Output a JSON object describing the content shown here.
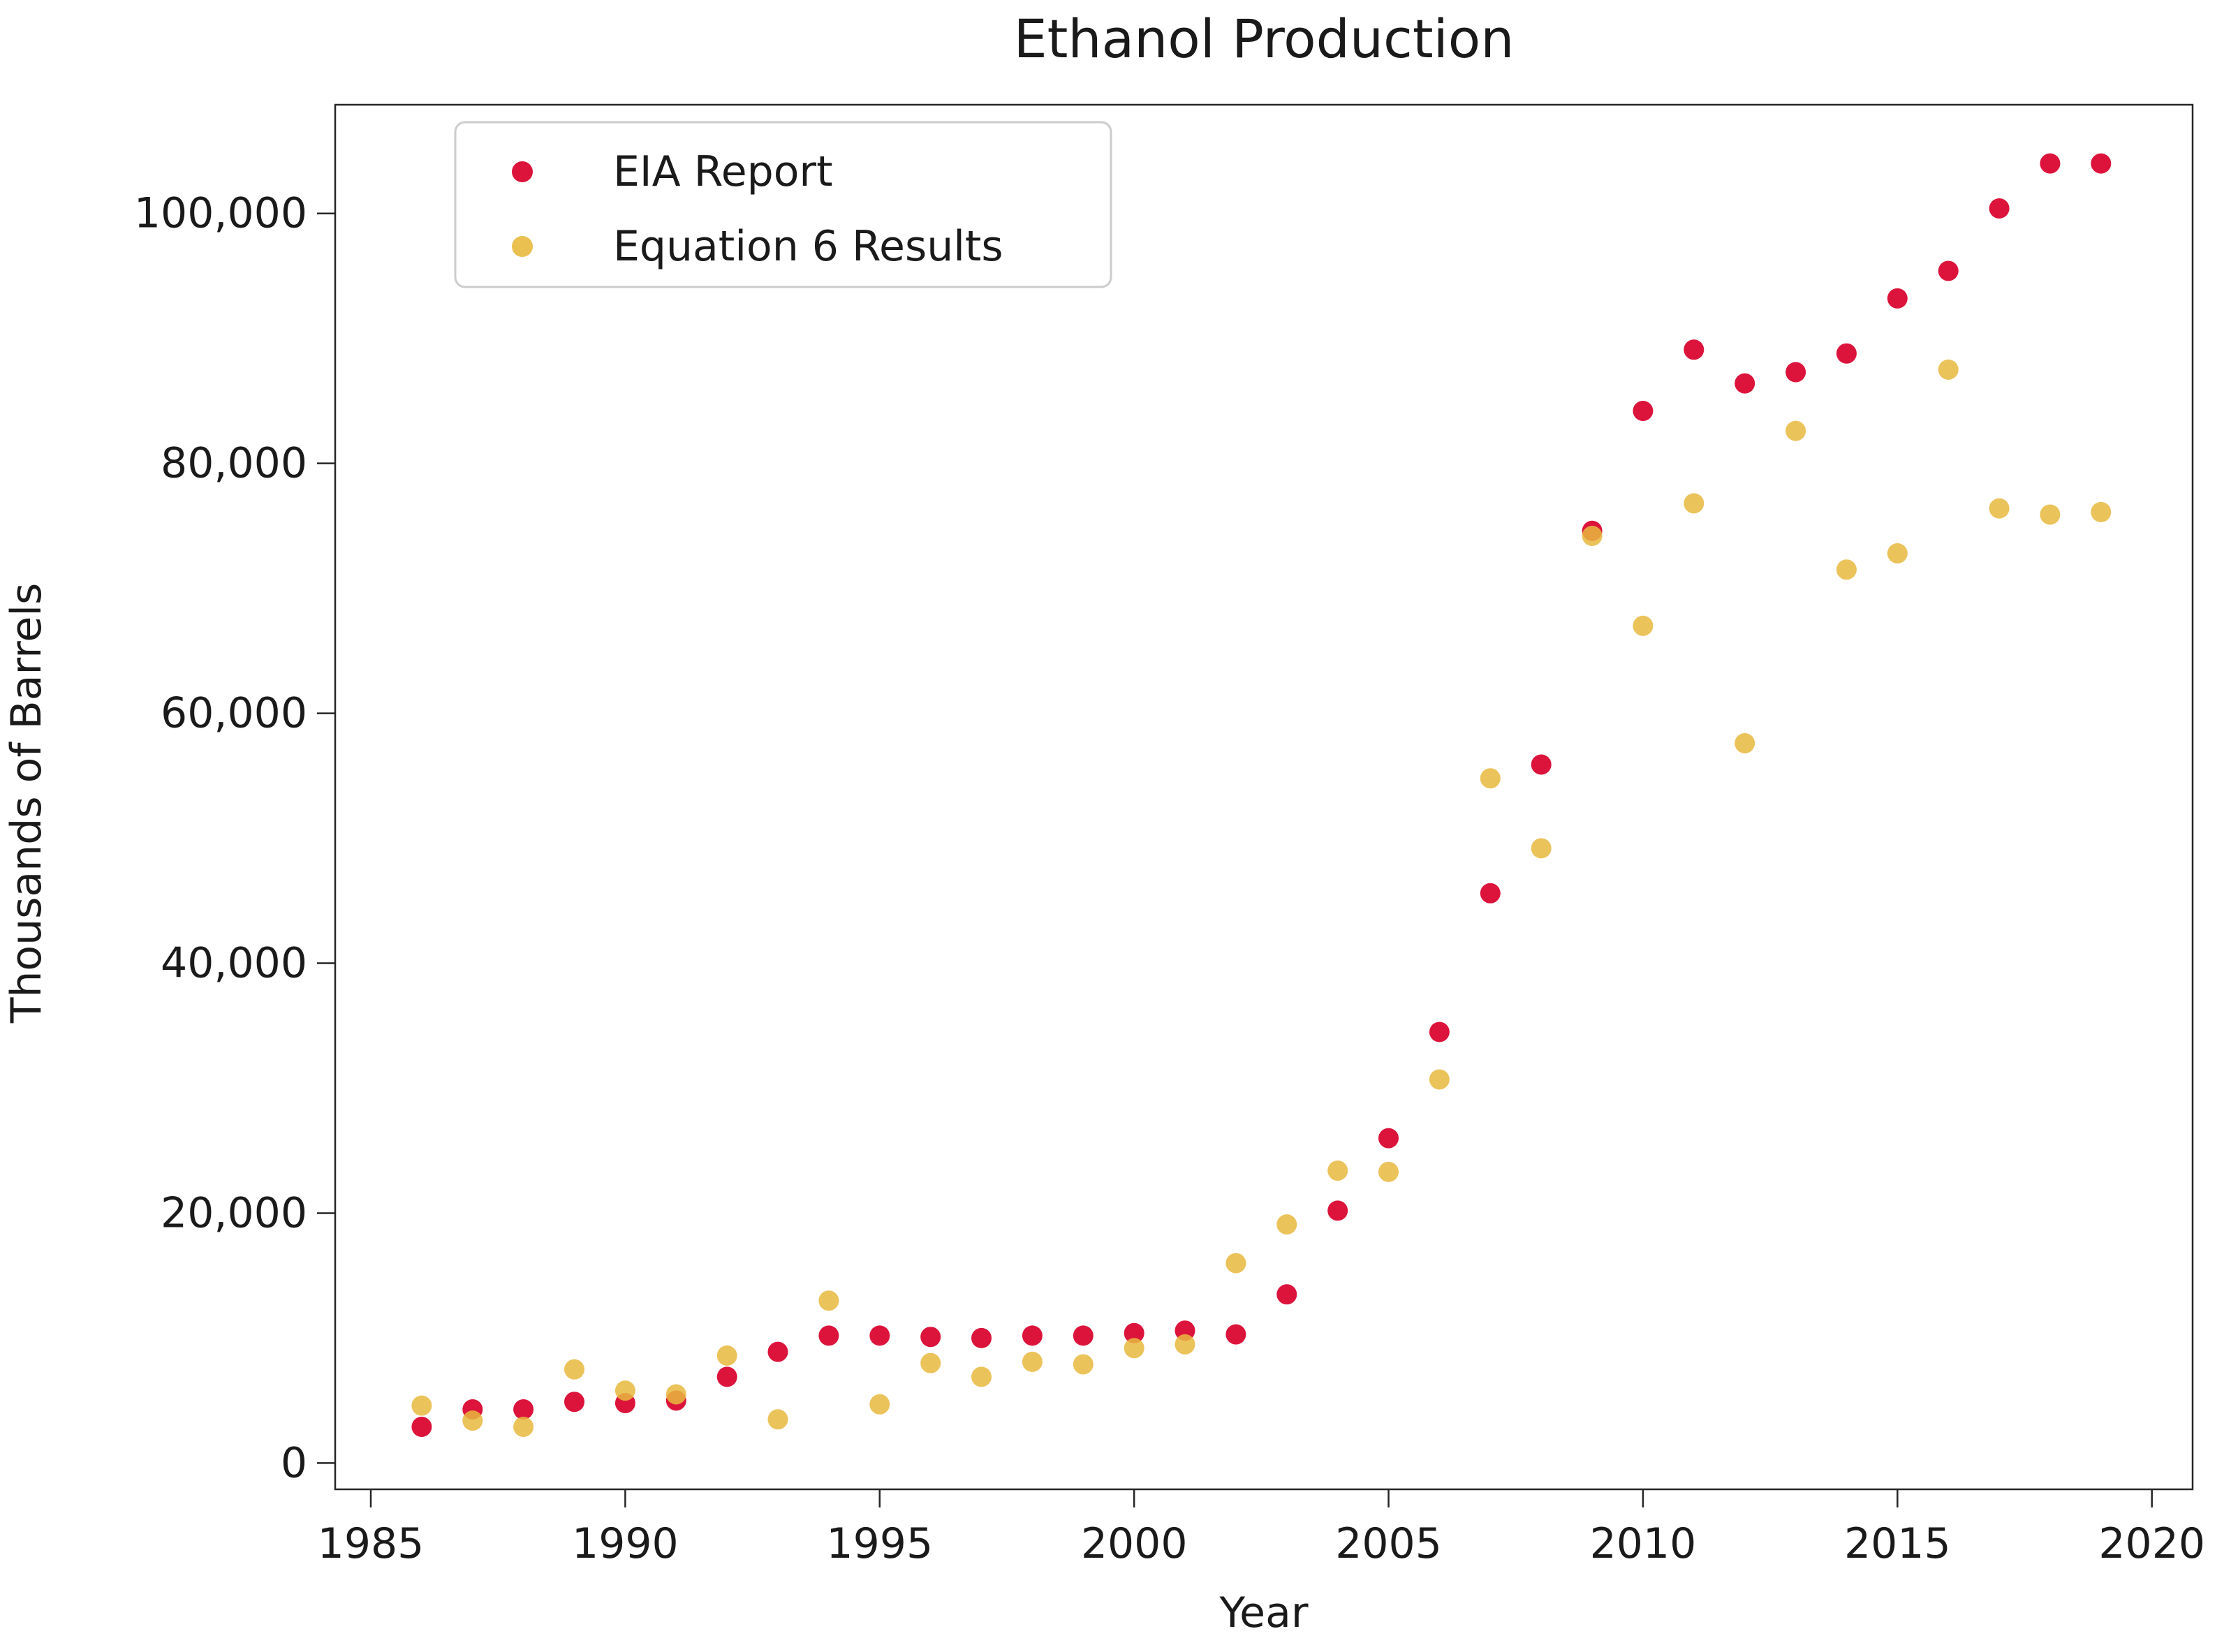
{
  "title": "Ethanol Production",
  "colors": {
    "eia_marker": "#DC143C",
    "eq6_marker": "#E8B93E",
    "spine": "#262626",
    "text": "#1a1a1a",
    "legend_border": "#cccccc",
    "background": "#ffffff"
  },
  "legend": {
    "items": [
      {
        "label": "EIA Report",
        "color": "#DC143C"
      },
      {
        "label": "Equation 6 Results",
        "color": "#E8B93E"
      }
    ]
  },
  "chart_data": {
    "type": "scatter",
    "title": "Ethanol Production",
    "xlabel": "Year",
    "ylabel": "Thousands of Barrels",
    "xlim": [
      1984.3,
      2020.8
    ],
    "ylim": [
      -2100,
      108700
    ],
    "x_ticks": [
      1985,
      1990,
      1995,
      2000,
      2005,
      2010,
      2015,
      2020
    ],
    "x_tick_labels": [
      "1985",
      "1990",
      "1995",
      "2000",
      "2005",
      "2010",
      "2015",
      "2020"
    ],
    "y_ticks": [
      0,
      20000,
      40000,
      60000,
      80000,
      100000
    ],
    "y_tick_labels": [
      "0",
      "20,000",
      "40,000",
      "60,000",
      "80,000",
      "100,000"
    ],
    "grid": false,
    "legend_position": "upper-left",
    "x": [
      1986,
      1987,
      1988,
      1989,
      1990,
      1991,
      1992,
      1993,
      1994,
      1995,
      1996,
      1997,
      1998,
      1999,
      2000,
      2001,
      2002,
      2003,
      2004,
      2005,
      2006,
      2007,
      2008,
      2009,
      2010,
      2011,
      2012,
      2013,
      2014,
      2015,
      2016,
      2017,
      2018,
      2019
    ],
    "series": [
      {
        "name": "EIA Report",
        "color": "#DC143C",
        "opacity": 1.0,
        "values": [
          2900,
          4300,
          4300,
          4900,
          4800,
          5000,
          6900,
          8900,
          10200,
          10200,
          10100,
          10000,
          10200,
          10200,
          10400,
          10600,
          10300,
          13500,
          20200,
          26000,
          34500,
          45600,
          55900,
          74600,
          84200,
          89100,
          86400,
          87300,
          88800,
          93200,
          95400,
          100400,
          104000,
          104000
        ]
      },
      {
        "name": "Equation 6 Results",
        "color": "#E8B93E",
        "opacity": 0.85,
        "values": [
          4600,
          3400,
          2900,
          7500,
          5800,
          5500,
          8600,
          3500,
          13000,
          4700,
          8000,
          6900,
          8100,
          7900,
          9200,
          9500,
          16000,
          19100,
          23400,
          23300,
          30700,
          54800,
          49200,
          74200,
          67000,
          76800,
          57600,
          82600,
          71500,
          72800,
          87500,
          76400,
          75900,
          76100
        ]
      }
    ]
  }
}
